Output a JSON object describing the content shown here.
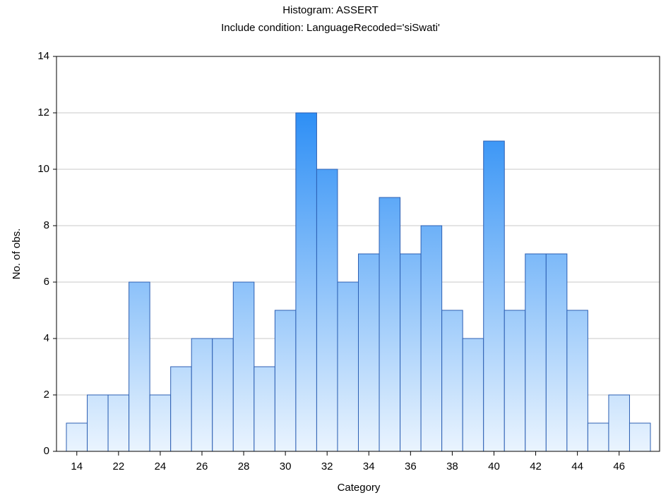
{
  "chart_data": {
    "type": "bar",
    "title": "Histogram: ASSERT",
    "subtitle": "Include condition: LanguageRecoded='siSwati'",
    "x_label": "Category",
    "y_label": "No. of obs.",
    "categories": [
      14,
      null,
      22,
      null,
      24,
      null,
      26,
      null,
      28,
      null,
      30,
      null,
      32,
      null,
      34,
      null,
      36,
      null,
      38,
      null,
      40,
      null,
      42,
      null,
      44,
      null,
      46,
      null
    ],
    "values": [
      1,
      2,
      2,
      6,
      2,
      3,
      4,
      4,
      6,
      3,
      5,
      12,
      10,
      6,
      7,
      9,
      7,
      8,
      5,
      4,
      11,
      5,
      7,
      7,
      5,
      1,
      2,
      1
    ],
    "color": "#2e8ff5",
    "edge_color": "#2c5fb3",
    "ylim": [
      0,
      14
    ],
    "yticks": [
      0,
      2,
      4,
      6,
      8,
      10,
      12,
      14
    ],
    "grid": true
  }
}
